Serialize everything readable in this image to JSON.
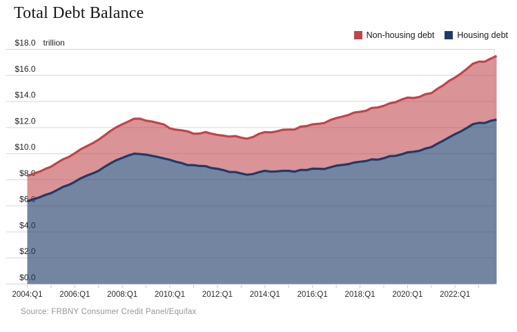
{
  "title": "Total Debt Balance",
  "unit_label": "trillion",
  "source": "Source: FRBNY Consumer Credit Panel/Equifax",
  "legend": [
    {
      "label": "Non-housing debt",
      "color": "#c0454b"
    },
    {
      "label": "Housing debt",
      "color": "#1f3a68"
    }
  ],
  "colors": {
    "grid": "#d6d6d6",
    "tick": "#c2c2c2",
    "non_housing_line": "#c0454b",
    "housing_line": "#1f3a68"
  },
  "chart_data": {
    "type": "area",
    "stacked": true,
    "title": "Total Debt Balance",
    "ylabel": "trillion",
    "ylim": [
      0,
      18
    ],
    "y_tick_step": 2,
    "y_tick_labels": [
      "$0.0",
      "$2.0",
      "$4.0",
      "$6.0",
      "$8.0",
      "$10.0",
      "$12.0",
      "$14.0",
      "$16.0",
      "$18.0"
    ],
    "x_start": "2004:Q1",
    "x_end": "2023:Q4",
    "quarters_per_year": 4,
    "x_tick_labels": [
      "2004:Q1",
      "2006:Q1",
      "2008:Q1",
      "2010:Q1",
      "2012:Q1",
      "2014:Q1",
      "2016:Q1",
      "2018:Q1",
      "2020:Q1",
      "2022:Q1"
    ],
    "x_label_every_quarters": 8,
    "grid": "horizontal",
    "legend_position": "top-right",
    "series": [
      {
        "name": "Housing debt",
        "color": "#1f3a68",
        "fill_opacity": 0.62,
        "values": [
          6.35,
          6.5,
          6.64,
          6.83,
          6.97,
          7.2,
          7.45,
          7.61,
          7.84,
          8.11,
          8.31,
          8.48,
          8.69,
          8.99,
          9.26,
          9.5,
          9.68,
          9.85,
          10.0,
          9.97,
          9.92,
          9.83,
          9.74,
          9.63,
          9.53,
          9.38,
          9.28,
          9.12,
          9.12,
          9.06,
          9.04,
          8.9,
          8.84,
          8.74,
          8.6,
          8.59,
          8.48,
          8.38,
          8.44,
          8.58,
          8.69,
          8.62,
          8.64,
          8.68,
          8.68,
          8.62,
          8.75,
          8.74,
          8.85,
          8.84,
          8.82,
          8.95,
          9.08,
          9.14,
          9.19,
          9.32,
          9.38,
          9.43,
          9.56,
          9.54,
          9.65,
          9.81,
          9.83,
          9.95,
          10.1,
          10.15,
          10.22,
          10.39,
          10.5,
          10.76,
          10.99,
          11.25,
          11.5,
          11.71,
          11.98,
          12.26,
          12.36,
          12.35,
          12.52,
          12.61
        ]
      },
      {
        "name": "Non-housing debt",
        "color": "#c0454b",
        "fill_opacity": 0.58,
        "values": [
          1.94,
          1.96,
          1.97,
          1.99,
          2.03,
          2.09,
          2.11,
          2.14,
          2.19,
          2.23,
          2.26,
          2.32,
          2.38,
          2.41,
          2.48,
          2.53,
          2.57,
          2.61,
          2.68,
          2.71,
          2.61,
          2.63,
          2.61,
          2.61,
          2.41,
          2.46,
          2.51,
          2.59,
          2.41,
          2.48,
          2.62,
          2.63,
          2.6,
          2.64,
          2.71,
          2.76,
          2.75,
          2.77,
          2.84,
          2.94,
          2.96,
          3.01,
          3.07,
          3.15,
          3.17,
          3.23,
          3.32,
          3.38,
          3.4,
          3.45,
          3.53,
          3.63,
          3.65,
          3.7,
          3.77,
          3.83,
          3.83,
          3.86,
          3.95,
          4.0,
          4.02,
          4.05,
          4.12,
          4.2,
          4.2,
          4.12,
          4.13,
          4.17,
          4.14,
          4.2,
          4.25,
          4.33,
          4.34,
          4.44,
          4.53,
          4.64,
          4.69,
          4.71,
          4.77,
          4.89
        ]
      }
    ]
  }
}
